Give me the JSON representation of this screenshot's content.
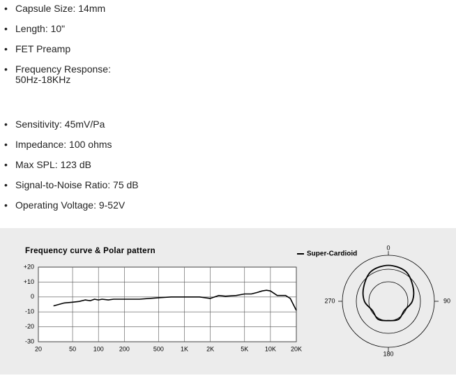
{
  "specs": [
    "Capsule Size: 14mm",
    "Length: 10\"",
    "FET Preamp",
    "Frequency Response:\n50Hz-18KHz",
    "Sensitivity: 45mV/Pa",
    "Impedance: 100 ohms",
    "Max SPL: 123 dB",
    "Signal-to-Noise Ratio: 75 dB",
    "Operating Voltage: 9-52V"
  ],
  "chart_data": [
    {
      "type": "line",
      "title": "Frequency curve & Polar pattern",
      "log_x": true,
      "grid": true,
      "color": "#000000",
      "x": [
        30,
        40,
        50,
        60,
        70,
        80,
        90,
        100,
        110,
        130,
        150,
        200,
        300,
        500,
        700,
        1000,
        1500,
        2000,
        2500,
        3000,
        4000,
        5000,
        6000,
        7000,
        8000,
        9000,
        10000,
        12000,
        15000,
        17000,
        20000
      ],
      "values": [
        -6,
        -4,
        -3.5,
        -3,
        -2,
        -2.5,
        -1.5,
        -2,
        -1.5,
        -2,
        -1.5,
        -1.5,
        -1.5,
        -0.5,
        0,
        0,
        0,
        -1,
        1,
        0.5,
        1,
        2,
        2,
        3,
        4,
        4.5,
        4,
        1,
        1,
        -1,
        -9
      ],
      "xlim": [
        20,
        20000
      ],
      "ylim": [
        -30,
        20
      ],
      "xticks": [
        20,
        50,
        100,
        200,
        500,
        {
          "value": 1000,
          "label": "1K"
        },
        {
          "value": 2000,
          "label": "2K"
        },
        {
          "value": 5000,
          "label": "5K"
        },
        {
          "value": 10000,
          "label": "10K"
        },
        {
          "value": 20000,
          "label": "20K"
        }
      ],
      "yticks": [
        {
          "value": 20,
          "label": "+20"
        },
        {
          "value": 10,
          "label": "+10"
        },
        0,
        -10,
        -20,
        -30
      ]
    },
    {
      "type": "polar",
      "color": "#000000",
      "rlim": [
        0,
        1
      ],
      "series": [
        {
          "name": "Super-Cardioid",
          "theta": [
            0,
            30,
            60,
            90,
            120,
            150,
            180,
            210,
            240,
            270,
            300,
            330
          ],
          "values": [
            0.78,
            0.75,
            0.62,
            0.52,
            0.4,
            0.45,
            0.42,
            0.45,
            0.4,
            0.52,
            0.62,
            0.75
          ]
        }
      ],
      "thetaticks": [
        0,
        90,
        180,
        270
      ]
    }
  ]
}
